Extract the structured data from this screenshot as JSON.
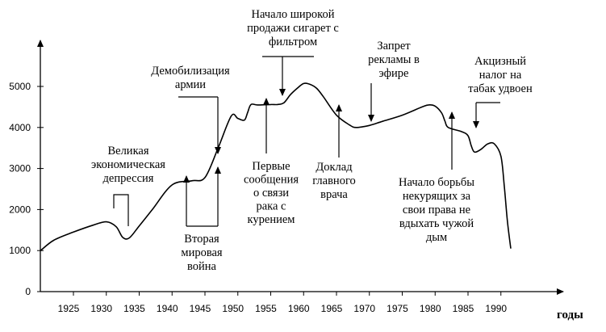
{
  "chart_data": {
    "type": "line",
    "title": "",
    "xlabel": "годы",
    "ylabel": "",
    "xlim": [
      1920,
      1993
    ],
    "ylim": [
      0,
      5500
    ],
    "grid": false,
    "legend": "none",
    "x_ticks": [
      1925,
      1930,
      1935,
      1940,
      1945,
      1950,
      1955,
      1960,
      1965,
      1970,
      1975,
      1980,
      1985,
      1990
    ],
    "y_ticks": [
      0,
      1000,
      2000,
      3000,
      4000,
      5000
    ],
    "series": [
      {
        "x": [
          1920,
          1922,
          1925,
          1928,
          1930,
          1931.5,
          1932.5,
          1933.5,
          1935,
          1937,
          1940,
          1943,
          1945,
          1947,
          1949,
          1950,
          1951,
          1951.5,
          1952,
          1953,
          1955,
          1956,
          1957,
          1958,
          1959,
          1960,
          1961,
          1962,
          1963,
          1965,
          1967,
          1968,
          1970,
          1972,
          1975,
          1978,
          1979,
          1980,
          1981,
          1981.5,
          1982,
          1984,
          1985,
          1985.5,
          1986,
          1987,
          1988,
          1989,
          1990,
          1990.5,
          1991,
          1991.5
        ],
        "y": [
          1000,
          1250,
          1450,
          1620,
          1700,
          1580,
          1320,
          1310,
          1600,
          2000,
          2600,
          2700,
          2780,
          3500,
          4280,
          4220,
          4180,
          4370,
          4560,
          4550,
          4560,
          4560,
          4600,
          4800,
          4950,
          5070,
          5050,
          4950,
          4750,
          4300,
          4060,
          4000,
          4050,
          4150,
          4300,
          4500,
          4550,
          4520,
          4350,
          4150,
          4000,
          3900,
          3800,
          3550,
          3400,
          3470,
          3600,
          3600,
          3300,
          2600,
          1700,
          1050
        ]
      }
    ],
    "annotations": [
      {
        "id": "depression",
        "lines": [
          "Великая",
          "экономическая",
          "депрессия"
        ]
      },
      {
        "id": "ww2",
        "lines": [
          "Вторая",
          "мировая",
          "война"
        ]
      },
      {
        "id": "demob",
        "lines": [
          "Демобилизация",
          "армии"
        ]
      },
      {
        "id": "first-reports",
        "lines": [
          "Первые",
          "сообщения",
          "о связи",
          "рака с",
          "курением"
        ]
      },
      {
        "id": "filter",
        "lines": [
          "Начало широкой",
          "продажи сигарет с",
          "фильтром"
        ]
      },
      {
        "id": "surgeon",
        "lines": [
          "Доклад",
          "главного",
          "врача"
        ]
      },
      {
        "id": "ad-ban",
        "lines": [
          "Запрет",
          "рекламы в",
          "эфире"
        ]
      },
      {
        "id": "nonsmokers",
        "lines": [
          "Начало борьбы",
          "некурящих за",
          "свои права не",
          "вдыхать чужой",
          "дым"
        ]
      },
      {
        "id": "excise",
        "lines": [
          "Акцизный",
          "налог на",
          "табак удвоен"
        ]
      }
    ]
  }
}
